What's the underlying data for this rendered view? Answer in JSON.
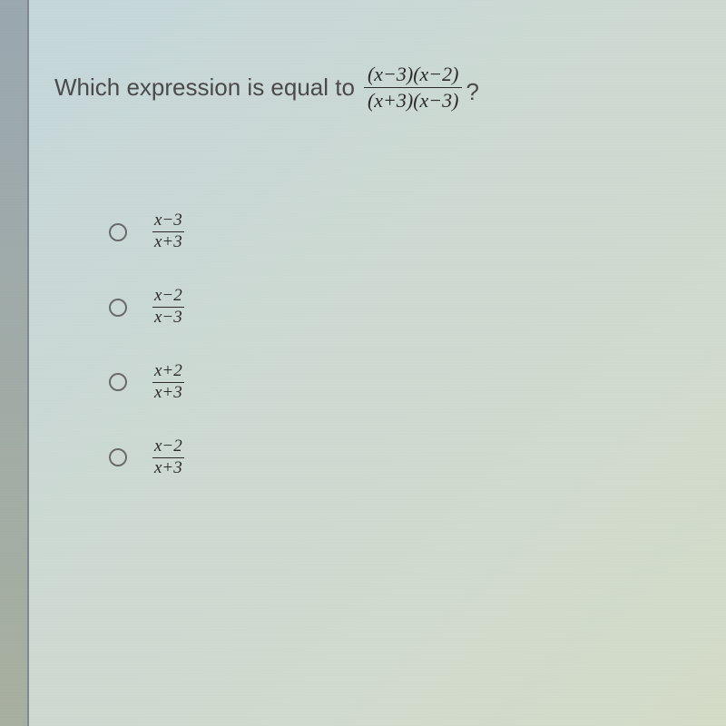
{
  "question": {
    "prompt": "Which expression is equal to",
    "fraction": {
      "numerator": "(x−3)(x−2)",
      "denominator": "(x+3)(x−3)"
    },
    "qmark": "?"
  },
  "options": [
    {
      "numerator": "x−3",
      "denominator": "x+3"
    },
    {
      "numerator": "x−2",
      "denominator": "x−3"
    },
    {
      "numerator": "x+2",
      "denominator": "x+3"
    },
    {
      "numerator": "x−2",
      "denominator": "x+3"
    }
  ]
}
